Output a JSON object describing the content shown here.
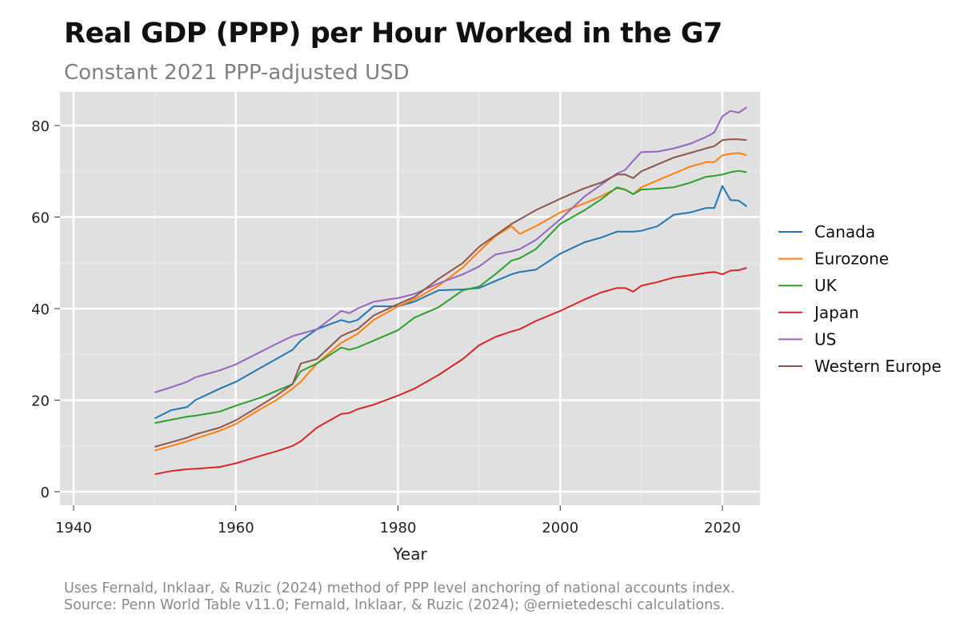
{
  "chart_data": {
    "type": "line",
    "title": "Real GDP (PPP) per Hour Worked in the G7",
    "subtitle": "Constant 2021 PPP-adjusted USD",
    "xlabel": "Year",
    "ylabel": "",
    "xlim": [
      1937,
      2025
    ],
    "ylim": [
      -3,
      88
    ],
    "xticks": [
      1940,
      1960,
      1980,
      2000,
      2020
    ],
    "yticks": [
      0,
      20,
      40,
      60,
      80
    ],
    "grid": true,
    "legend_position": "right",
    "x": [
      1950,
      1952,
      1954,
      1955,
      1958,
      1960,
      1963,
      1965,
      1967,
      1968,
      1970,
      1973,
      1974,
      1975,
      1977,
      1980,
      1982,
      1985,
      1988,
      1990,
      1992,
      1994,
      1995,
      1997,
      2000,
      2003,
      2005,
      2007,
      2008,
      2009,
      2010,
      2012,
      2014,
      2016,
      2018,
      2019,
      2020,
      2021,
      2022,
      2023
    ],
    "series": [
      {
        "name": "Canada",
        "color": "#1f77b4",
        "values": [
          16.0,
          17.8,
          18.5,
          20,
          22.5,
          24,
          27,
          29,
          31,
          33,
          35.5,
          37.5,
          37,
          37.5,
          40.5,
          40.5,
          41.5,
          44,
          44.2,
          44.5,
          46,
          47.5,
          48,
          48.5,
          52,
          54.5,
          55.5,
          56.8,
          56.8,
          56.8,
          57,
          58,
          60.5,
          61,
          62,
          62,
          66.8,
          63.7,
          63.6,
          62.3
        ]
      },
      {
        "name": "Eurozone",
        "color": "#ff7f0e",
        "values": [
          9,
          10,
          11,
          11.6,
          13.3,
          14.8,
          18,
          20,
          22.5,
          24,
          28,
          32.5,
          33.5,
          34.5,
          37.5,
          40.5,
          42,
          45,
          49,
          52.5,
          55.8,
          58,
          56.3,
          58,
          61,
          63,
          64.5,
          66.3,
          66,
          65,
          66.5,
          68,
          69.5,
          71,
          72,
          72,
          73.5,
          73.8,
          74,
          73.5
        ]
      },
      {
        "name": "UK",
        "color": "#2ca02c",
        "values": [
          15,
          15.7,
          16.4,
          16.6,
          17.5,
          18.8,
          20.5,
          22,
          23.5,
          26.3,
          28,
          31.5,
          31,
          31.5,
          33,
          35.3,
          38,
          40.3,
          44,
          44.8,
          47.5,
          50.5,
          51,
          53,
          58.5,
          61.5,
          63.8,
          66.5,
          66,
          65,
          66,
          66.2,
          66.5,
          67.5,
          68.8,
          69,
          69.3,
          69.8,
          70.1,
          69.8
        ]
      },
      {
        "name": "Japan",
        "color": "#d62728",
        "values": [
          3.8,
          4.5,
          4.9,
          5,
          5.4,
          6.2,
          7.8,
          8.8,
          10,
          11,
          14,
          17,
          17.2,
          18,
          19,
          21,
          22.5,
          25.5,
          29,
          32,
          33.8,
          35,
          35.5,
          37.3,
          39.5,
          42,
          43.5,
          44.5,
          44.5,
          43.7,
          45,
          45.8,
          46.8,
          47.3,
          47.8,
          48,
          47.5,
          48.3,
          48.4,
          48.9
        ]
      },
      {
        "name": "US",
        "color": "#9467bd",
        "values": [
          21.7,
          22.8,
          24,
          25,
          26.5,
          27.8,
          30.5,
          32.3,
          34,
          34.5,
          35.5,
          39.5,
          39,
          40,
          41.5,
          42.3,
          43.2,
          45.5,
          47.5,
          49.2,
          51.8,
          52.5,
          53,
          55,
          59.5,
          64.5,
          67,
          69.5,
          70.3,
          72.3,
          74.2,
          74.3,
          75,
          76,
          77.5,
          78.5,
          82,
          83.2,
          82.8,
          84
        ]
      },
      {
        "name": "Western Europe",
        "color": "#8c564b",
        "values": [
          9.8,
          10.8,
          11.8,
          12.5,
          14,
          15.6,
          18.8,
          21,
          23.5,
          28,
          29,
          34,
          34.8,
          35.5,
          38.5,
          41,
          42.5,
          46.5,
          50,
          53.5,
          56,
          58.5,
          59.5,
          61.5,
          64,
          66.3,
          67.5,
          69.3,
          69.3,
          68.5,
          70,
          71.5,
          73,
          74,
          75,
          75.5,
          76.8,
          77,
          77,
          76.8
        ]
      }
    ],
    "notes": [
      "Uses Fernald, Inklaar, & Ruzic (2024) method of PPP level anchoring of national accounts index.",
      "Source: Penn World Table v11.0; Fernald, Inklaar, & Ruzic (2024); @ernietedeschi calculations."
    ]
  }
}
